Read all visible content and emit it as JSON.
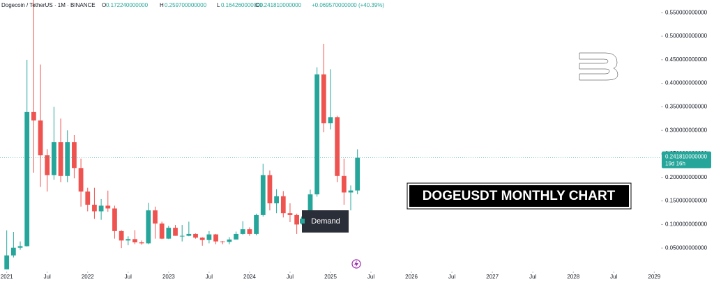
{
  "chart_data": {
    "type": "candlestick",
    "title": "Dogecoin / TetherUS · 1M · BINANCE",
    "ohlc_header": [
      {
        "label": "O",
        "value": "0.172240000000"
      },
      {
        "label": "H",
        "value": "0.259700000000"
      },
      {
        "label": "L",
        "value": "0.164260000000"
      },
      {
        "label": "C",
        "value": "0.241810000000"
      }
    ],
    "change": "+0.069570000000 (+40.39%)",
    "last_price_label": {
      "price": "0.241810000000",
      "countdown": "19d 16h"
    },
    "annotations": {
      "zone": "Demand",
      "banner": "DOGEUSDT MONTHLY CHART"
    },
    "up_color": "#26a69a",
    "down_color": "#ef5350",
    "grid": false,
    "x": [
      "2021-01",
      "2021-02",
      "2021-03",
      "2021-04",
      "2021-05",
      "2021-06",
      "2021-07",
      "2021-08",
      "2021-09",
      "2021-10",
      "2021-11",
      "2021-12",
      "2022-01",
      "2022-02",
      "2022-03",
      "2022-04",
      "2022-05",
      "2022-06",
      "2022-07",
      "2022-08",
      "2022-09",
      "2022-10",
      "2022-11",
      "2022-12",
      "2023-01",
      "2023-02",
      "2023-03",
      "2023-04",
      "2023-05",
      "2023-06",
      "2023-07",
      "2023-08",
      "2023-09",
      "2023-10",
      "2023-11",
      "2023-12",
      "2024-01",
      "2024-02",
      "2024-03",
      "2024-04",
      "2024-05",
      "2024-06",
      "2024-07",
      "2024-08",
      "2024-09",
      "2024-10",
      "2024-11",
      "2024-12",
      "2025-01",
      "2025-02",
      "2025-03",
      "2025-04",
      "2025-05"
    ],
    "open": [
      0.0047,
      0.0343,
      0.0507,
      0.0539,
      0.339,
      0.321,
      0.247,
      0.205,
      0.275,
      0.203,
      0.275,
      0.22,
      0.17,
      0.142,
      0.128,
      0.14,
      0.134,
      0.086,
      0.066,
      0.069,
      0.062,
      0.06,
      0.13,
      0.102,
      0.07,
      0.093,
      0.076,
      0.076,
      0.08,
      0.072,
      0.067,
      0.079,
      0.064,
      0.063,
      0.068,
      0.08,
      0.09,
      0.08,
      0.12,
      0.205,
      0.145,
      0.16,
      0.124,
      0.12,
      0.1,
      0.117,
      0.164,
      0.419,
      0.315,
      0.328,
      0.203,
      0.168,
      0.17224
    ],
    "high": [
      0.0875,
      0.0843,
      0.064,
      0.45,
      0.74,
      0.44,
      0.26,
      0.35,
      0.325,
      0.3,
      0.29,
      0.24,
      0.178,
      0.178,
      0.154,
      0.172,
      0.14,
      0.088,
      0.075,
      0.088,
      0.066,
      0.146,
      0.138,
      0.106,
      0.097,
      0.099,
      0.099,
      0.106,
      0.081,
      0.073,
      0.086,
      0.08,
      0.065,
      0.073,
      0.085,
      0.107,
      0.094,
      0.123,
      0.229,
      0.215,
      0.175,
      0.171,
      0.145,
      0.123,
      0.127,
      0.174,
      0.434,
      0.484,
      0.43,
      0.331,
      0.24,
      0.183,
      0.2597
    ],
    "low": [
      0.0046,
      0.03,
      0.0463,
      0.053,
      0.21,
      0.18,
      0.17,
      0.195,
      0.19,
      0.19,
      0.198,
      0.138,
      0.128,
      0.112,
      0.11,
      0.127,
      0.07,
      0.05,
      0.056,
      0.058,
      0.057,
      0.058,
      0.07,
      0.069,
      0.069,
      0.076,
      0.064,
      0.075,
      0.07,
      0.055,
      0.06,
      0.058,
      0.058,
      0.058,
      0.068,
      0.078,
      0.076,
      0.077,
      0.117,
      0.13,
      0.124,
      0.115,
      0.105,
      0.08,
      0.091,
      0.105,
      0.159,
      0.296,
      0.302,
      0.19,
      0.142,
      0.13,
      0.16426
    ],
    "close": [
      0.0343,
      0.0507,
      0.0539,
      0.339,
      0.321,
      0.247,
      0.205,
      0.275,
      0.203,
      0.275,
      0.22,
      0.17,
      0.142,
      0.128,
      0.14,
      0.134,
      0.086,
      0.066,
      0.069,
      0.062,
      0.06,
      0.13,
      0.102,
      0.07,
      0.093,
      0.076,
      0.076,
      0.08,
      0.072,
      0.067,
      0.079,
      0.064,
      0.063,
      0.068,
      0.08,
      0.09,
      0.08,
      0.12,
      0.205,
      0.145,
      0.16,
      0.124,
      0.12,
      0.1,
      0.117,
      0.164,
      0.419,
      0.315,
      0.328,
      0.203,
      0.168,
      0.17224,
      0.24181
    ],
    "xlim": [
      "2020-12",
      "2029-02"
    ],
    "xticks": [
      {
        "value": "2021-01",
        "label": "2021"
      },
      {
        "value": "2021-07",
        "label": "Jul"
      },
      {
        "value": "2022-01",
        "label": "2022"
      },
      {
        "value": "2022-07",
        "label": "Jul"
      },
      {
        "value": "2023-01",
        "label": "2023"
      },
      {
        "value": "2023-07",
        "label": "Jul"
      },
      {
        "value": "2024-01",
        "label": "2024"
      },
      {
        "value": "2024-07",
        "label": "Jul"
      },
      {
        "value": "2025-01",
        "label": "2025"
      },
      {
        "value": "2025-07",
        "label": "Jul"
      },
      {
        "value": "2026-01",
        "label": "2026"
      },
      {
        "value": "2026-07",
        "label": "Jul"
      },
      {
        "value": "2027-01",
        "label": "2027"
      },
      {
        "value": "2027-07",
        "label": "Jul"
      },
      {
        "value": "2028-01",
        "label": "2028"
      },
      {
        "value": "2028-07",
        "label": "Jul"
      },
      {
        "value": "2029-01",
        "label": "2029"
      }
    ],
    "ylim": [
      0,
      0.577
    ],
    "yticks": [
      {
        "value": 0.05,
        "label": "0.050000000000"
      },
      {
        "value": 0.1,
        "label": "0.100000000000"
      },
      {
        "value": 0.15,
        "label": "0.150000000000"
      },
      {
        "value": 0.2,
        "label": "0.200000000000"
      },
      {
        "value": 0.25,
        "label": "0.250000000000"
      },
      {
        "value": 0.3,
        "label": "0.300000000000"
      },
      {
        "value": 0.35,
        "label": "0.350000000000"
      },
      {
        "value": 0.4,
        "label": "0.400000000000"
      },
      {
        "value": 0.45,
        "label": "0.450000000000"
      },
      {
        "value": 0.5,
        "label": "0.500000000000"
      },
      {
        "value": 0.55,
        "label": "0.550000000000"
      }
    ]
  }
}
